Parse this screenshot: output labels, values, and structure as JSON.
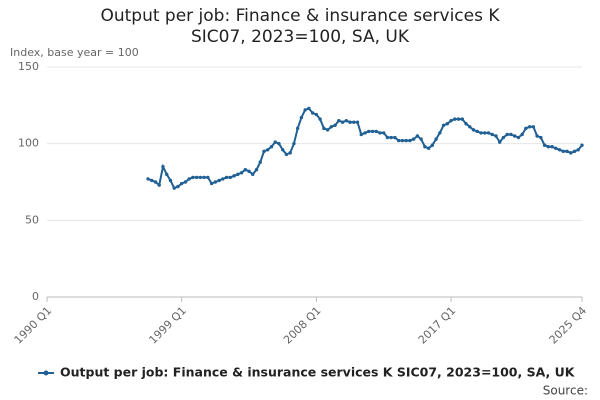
{
  "chart_data": {
    "type": "line",
    "title": "Output per job: Finance & insurance services K SIC07, 2023=100, SA, UK",
    "y_label": "Index, base year = 100",
    "source": "Source:",
    "categories": [
      "1990 Q1",
      null,
      null,
      null,
      null,
      null,
      null,
      null,
      null,
      null,
      null,
      null,
      null,
      null,
      null,
      null,
      null,
      null,
      null,
      null,
      null,
      null,
      null,
      null,
      null,
      null,
      null,
      null,
      null,
      null,
      null,
      null,
      null,
      null,
      null,
      null,
      "1999 Q1",
      null,
      null,
      null,
      null,
      null,
      null,
      null,
      null,
      null,
      null,
      null,
      null,
      null,
      null,
      null,
      null,
      null,
      null,
      null,
      null,
      null,
      null,
      null,
      null,
      null,
      null,
      null,
      null,
      null,
      null,
      null,
      null,
      null,
      null,
      null,
      "2008 Q1",
      null,
      null,
      null,
      null,
      null,
      null,
      null,
      null,
      null,
      null,
      null,
      null,
      null,
      null,
      null,
      null,
      null,
      null,
      null,
      null,
      null,
      null,
      null,
      null,
      null,
      null,
      null,
      null,
      null,
      null,
      null,
      null,
      null,
      null,
      null,
      "2017 Q1",
      null,
      null,
      null,
      null,
      null,
      null,
      null,
      null,
      null,
      null,
      null,
      null,
      null,
      null,
      null,
      null,
      null,
      null,
      null,
      null,
      null,
      null,
      null,
      null,
      null,
      null,
      null,
      null,
      null,
      null,
      null,
      null,
      null,
      null,
      "2025 Q4"
    ],
    "series": [
      {
        "name": "Output per job: Finance & insurance services K SIC07, 2023=100, SA, UK",
        "color": "#206095",
        "values": [
          null,
          null,
          null,
          null,
          null,
          null,
          null,
          null,
          null,
          null,
          null,
          null,
          null,
          null,
          null,
          null,
          null,
          null,
          null,
          null,
          null,
          null,
          null,
          null,
          null,
          null,
          null,
          77,
          76,
          75,
          73,
          85,
          80,
          76,
          71,
          72,
          74,
          75,
          77,
          78,
          78,
          78,
          78,
          78,
          74,
          75,
          76,
          77,
          78,
          78,
          79,
          80,
          81,
          83,
          82,
          80,
          83,
          88,
          95,
          96,
          98,
          101,
          100,
          96,
          93,
          94,
          100,
          110,
          117,
          122,
          123,
          120,
          119,
          116,
          110,
          109,
          111,
          112,
          115,
          114,
          115,
          114,
          114,
          114,
          106,
          107,
          108,
          108,
          108,
          107,
          107,
          104,
          104,
          104,
          102,
          102,
          102,
          102,
          103,
          105,
          103,
          98,
          97,
          99,
          103,
          107,
          112,
          113,
          115,
          116,
          116,
          116,
          113,
          111,
          109,
          108,
          107,
          107,
          107,
          106,
          105,
          101,
          104,
          106,
          106,
          105,
          104,
          106,
          110,
          111,
          111,
          105,
          104,
          99,
          98,
          98,
          97,
          96,
          95,
          95,
          94,
          95,
          96,
          99
        ]
      }
    ],
    "ylim": [
      0,
      150
    ],
    "yticks": [
      0,
      50,
      100,
      150
    ],
    "grid": true
  }
}
